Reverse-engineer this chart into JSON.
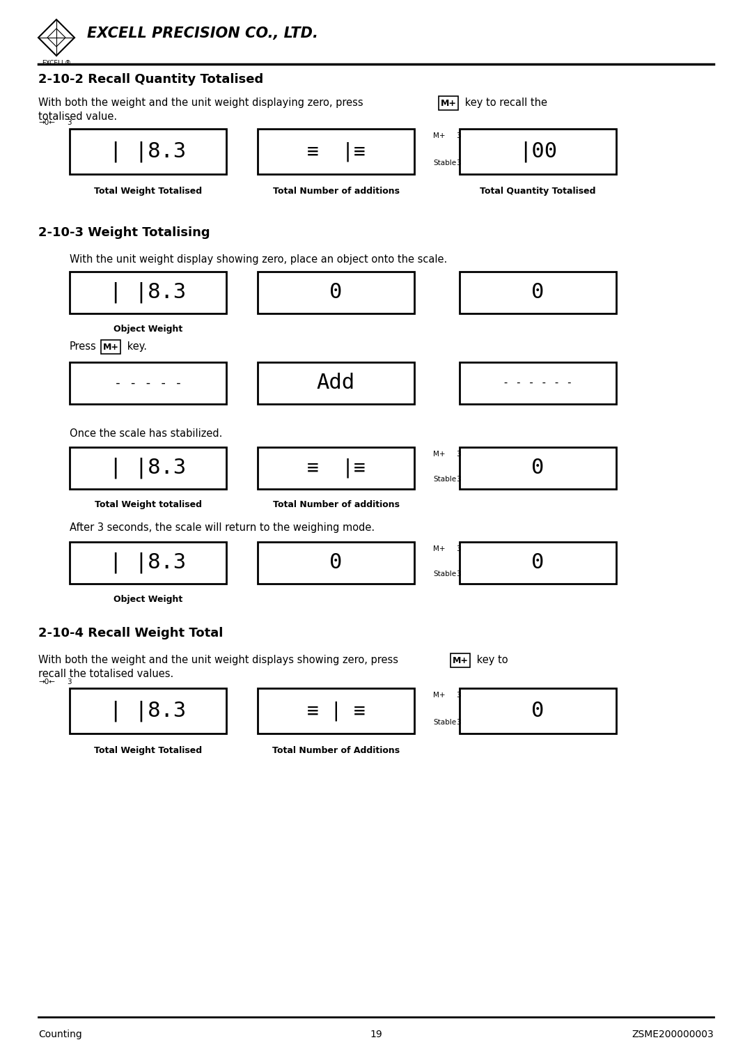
{
  "page_title": "EXCELL PRECISION CO., LTD.",
  "footer_left": "Counting",
  "footer_center": "19",
  "footer_right": "ZSME200000003",
  "section1_title": "2-10-2 Recall Quantity Totalised",
  "section1_para_a": "With both the weight and the unit weight displaying zero, press",
  "section1_para_b": "key to recall the",
  "section1_para_c": "totalised value.",
  "section1_disp1_label": "Total Weight Totalised",
  "section1_disp2_label": "Total Number of additions",
  "section1_disp3_label": "Total Quantity Totalised",
  "section2_title": "2-10-3 Weight Totalising",
  "section2_para": "With the unit weight display showing zero, place an object onto the scale.",
  "section2_row1_d1_label": "Object Weight",
  "section2_press_a": "Press",
  "section2_press_b": "key.",
  "section2_once_text": "Once the scale has stabilized.",
  "section2_row3_d1_label": "Total Weight totalised",
  "section2_row3_d2_label": "Total Number of additions",
  "section2_after_text": "After 3 seconds, the scale will return to the weighing mode.",
  "section2_row4_d1_label": "Object Weight",
  "section3_title": "2-10-4 Recall Weight Total",
  "section3_para_a": "With both the weight and the unit weight displays showing zero, press",
  "section3_para_b": "key to",
  "section3_para_c": "recall the totalised values.",
  "section3_disp1_label": "Total Weight Totalised",
  "section3_disp2_label": "Total Number of Additions",
  "bg_color": "#ffffff",
  "text_color": "#000000"
}
